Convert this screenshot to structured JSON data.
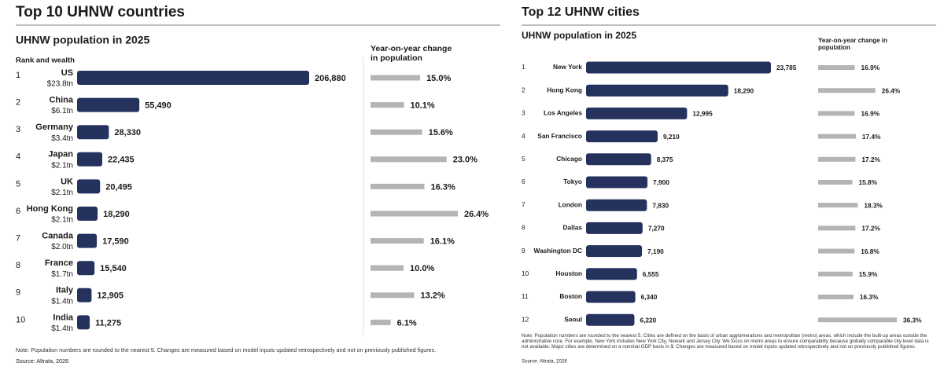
{
  "chart_data": [
    {
      "type": "bar",
      "title": "Top 10 UHNW countries",
      "rank_label": "Rank and wealth",
      "ranks": [
        1,
        2,
        3,
        4,
        5,
        6,
        7,
        8,
        9,
        10
      ],
      "categories": [
        "US",
        "China",
        "Germany",
        "Japan",
        "UK",
        "Hong Kong",
        "Canada",
        "France",
        "Italy",
        "India"
      ],
      "wealth": [
        "$23.8tn",
        "$6.1tn",
        "$3.4tn",
        "$2.1tn",
        "$2.1tn",
        "$2.1tn",
        "$2.0tn",
        "$1.7tn",
        "$1.4tn",
        "$1.4tn"
      ],
      "series": [
        {
          "name": "UHNW population in 2025",
          "color": "#25325e",
          "values": [
            206880,
            55490,
            28330,
            22435,
            20495,
            18290,
            17590,
            15540,
            12905,
            11275
          ],
          "value_labels": [
            "206,880",
            "55,490",
            "28,330",
            "22,435",
            "20,495",
            "18,290",
            "17,590",
            "15,540",
            "12,905",
            "11,275"
          ]
        },
        {
          "name": "Year-on-year change in population",
          "color": "#b4b4b4",
          "values": [
            15.0,
            10.1,
            15.6,
            23.0,
            16.3,
            26.4,
            16.1,
            10.0,
            13.2,
            6.1
          ],
          "value_labels": [
            "15.0%",
            "10.1%",
            "15.6%",
            "23.0%",
            "16.3%",
            "26.4%",
            "16.1%",
            "10.0%",
            "13.2%",
            "6.1%"
          ]
        }
      ],
      "note": "Note: Population numbers are rounded to the nearest 5. Changes are measured based on model inputs updated retrospectively and not on previously published figures.",
      "source": "Source: Altrata, 2026"
    },
    {
      "type": "bar",
      "title": "Top 12 UHNW cities",
      "ranks": [
        1,
        2,
        3,
        4,
        5,
        6,
        7,
        8,
        9,
        10,
        11,
        12
      ],
      "categories": [
        "New York",
        "Hong Kong",
        "Los Angeles",
        "San Francisco",
        "Chicago",
        "Tokyo",
        "London",
        "Dallas",
        "Washington DC",
        "Houston",
        "Boston",
        "Seoul"
      ],
      "series": [
        {
          "name": "UHNW population in 2025",
          "color": "#25325e",
          "values": [
            23785,
            18290,
            12995,
            9210,
            8375,
            7900,
            7830,
            7270,
            7190,
            6555,
            6340,
            6220
          ],
          "value_labels": [
            "23,785",
            "18,290",
            "12,995",
            "9,210",
            "8,375",
            "7,900",
            "7,830",
            "7,270",
            "7,190",
            "6,555",
            "6,340",
            "6,220"
          ]
        },
        {
          "name": "Year-on-year change in population",
          "color": "#b4b4b4",
          "values": [
            16.9,
            26.4,
            16.9,
            17.4,
            17.2,
            15.8,
            18.3,
            17.2,
            16.8,
            15.9,
            16.3,
            36.3
          ],
          "value_labels": [
            "16.9%",
            "26.4%",
            "16.9%",
            "17.4%",
            "17.2%",
            "15.8%",
            "18.3%",
            "17.2%",
            "16.8%",
            "15.9%",
            "16.3%",
            "36.3%"
          ]
        }
      ],
      "note": "Note: Population numbers are rounded to the nearest 5. Cities are defined on the basis of urban agglomerations and metropolitan (metro) areas, which include the built-up areas outside the administrative core. For example, New York includes New York City, Newark and Jersey City. We focus on metro areas to ensure comparability because globally comparable city-level data is not available. Major cities are determined on a nominal GDP basis in $. Changes are measured based on model inputs updated retrospectively and not on previously published figures.",
      "source": "Source: Altrata, 2026"
    }
  ]
}
